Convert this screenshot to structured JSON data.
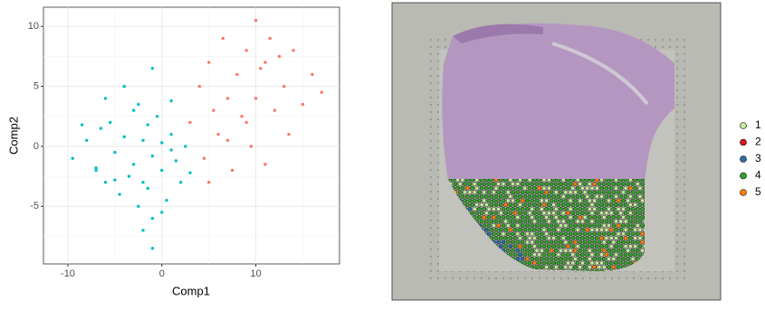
{
  "chart_data": {
    "type": "scatter",
    "xlabel": "Comp1",
    "ylabel": "Comp2",
    "xlim": [
      -12.6,
      18.9
    ],
    "ylim": [
      -9.8,
      11.6
    ],
    "xticks": [
      -10,
      0,
      10
    ],
    "yticks": [
      -5,
      0,
      5,
      10
    ],
    "x_minor_grid": [
      -5,
      5,
      15
    ],
    "y_minor_grid": [
      -7.5,
      -2.5,
      2.5,
      7.5
    ],
    "grid": true,
    "series": [
      {
        "color": "#00BFC4",
        "x": [
          -9.5,
          -8,
          -7,
          -6.5,
          -6,
          -5.5,
          -5,
          -4.5,
          -4,
          -3.5,
          -3,
          -3,
          -2.5,
          -2,
          -2,
          -1.5,
          -1,
          -1,
          -0.5,
          0,
          0,
          0.5,
          1,
          1.5,
          2,
          2.5,
          3,
          -4,
          -6,
          -8.5,
          -1,
          -1,
          1,
          -2,
          -5,
          0,
          -7,
          -2.5,
          1,
          -1.5
        ],
        "values": [
          -1,
          0.5,
          -2,
          1.5,
          -3,
          2,
          -0.5,
          -4,
          0.8,
          -2.5,
          3,
          -1.5,
          -5,
          0.5,
          -3,
          1.8,
          -0.8,
          -6,
          2.5,
          -2,
          0.3,
          -4.5,
          1,
          -1.2,
          -3,
          0,
          -2.2,
          5,
          4,
          1.8,
          -8.5,
          6.5,
          -0.3,
          -7,
          -2.8,
          -5.5,
          -1.8,
          3.5,
          3.8,
          -3.5
        ]
      },
      {
        "color": "#F8766D",
        "x": [
          3,
          4,
          4.5,
          5,
          5.5,
          6,
          6.5,
          7,
          7.5,
          8,
          8.5,
          9,
          9.5,
          10,
          10,
          10.5,
          11,
          11.5,
          12,
          12.5,
          13,
          13.5,
          14,
          15,
          16,
          17,
          5,
          7,
          9,
          11
        ],
        "values": [
          2,
          5,
          -1,
          7,
          3,
          1,
          9,
          4,
          -2,
          6,
          2.5,
          8,
          0,
          10.5,
          4,
          6.5,
          -1.5,
          9,
          3,
          7.5,
          5,
          1,
          8,
          3.5,
          6,
          4.5,
          -3,
          0.5,
          2,
          7
        ]
      }
    ]
  },
  "legend": {
    "items": [
      {
        "label": "1",
        "color": "#c7e9a0"
      },
      {
        "label": "2",
        "color": "#d7191c"
      },
      {
        "label": "3",
        "color": "#2c6ea8"
      },
      {
        "label": "4",
        "color": "#33a02c"
      },
      {
        "label": "5",
        "color": "#ff7f00"
      }
    ]
  }
}
